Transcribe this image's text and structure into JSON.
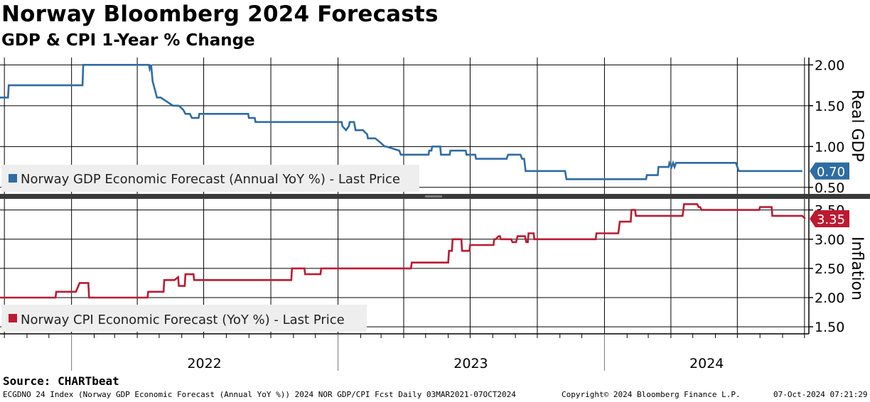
{
  "header": {
    "title": "Norway Bloomberg 2024 Forecasts",
    "subtitle": "GDP & CPI 1-Year % Change"
  },
  "source_label": "Source: CHARTbeat",
  "footer": {
    "description": "ECGDNO 24 Index (Norway GDP Economic Forecast (Annual YoY %)) 2024 NOR GDP/CPI Fcst  Daily 03MAR2021-07OCT2024",
    "copyright": "Copyright© 2024 Bloomberg Finance L.P.",
    "timestamp": "07-Oct-2024 07:21:29"
  },
  "chart_data": [
    {
      "type": "line",
      "panel": "top",
      "ylabel": "Real GDP",
      "ylim": [
        0.42,
        2.09
      ],
      "yticks": [
        "2.00",
        "1.50",
        "1.00",
        "0.50"
      ],
      "ytick_values": [
        2.0,
        1.5,
        1.0,
        0.5
      ],
      "legend": "Norway GDP Economic Forecast (Annual YoY %) - Last Price",
      "legend_placement": "bottom-left",
      "last_value_label": "0.70",
      "color": "#2e6ca4",
      "x_range": [
        "2021-09-25",
        "2024-10-07"
      ],
      "x_year_labels": [
        "2022",
        "2023",
        "2024"
      ],
      "grid": true,
      "series": [
        {
          "x": [
            "2021-09-25",
            "2021-10-06",
            "2021-10-07",
            "2022-01-16",
            "2022-01-17",
            "2022-03-12",
            "2022-04-17",
            "2022-04-18",
            "2022-04-20",
            "2022-04-22",
            "2022-04-28",
            "2022-05-03",
            "2022-05-20",
            "2022-05-28",
            "2022-06-03",
            "2022-06-06",
            "2022-06-12",
            "2022-06-15",
            "2022-06-24",
            "2022-06-25",
            "2022-08-31",
            "2022-09-01",
            "2022-09-09",
            "2022-09-10",
            "2023-01-06",
            "2023-01-07",
            "2023-01-12",
            "2023-01-16",
            "2023-01-17",
            "2023-01-23",
            "2023-01-25",
            "2023-02-04",
            "2023-02-10",
            "2023-02-11",
            "2023-02-21",
            "2023-02-28",
            "2023-03-06",
            "2023-03-08",
            "2023-03-26",
            "2023-03-28",
            "2023-04-05",
            "2023-04-07",
            "2023-05-05",
            "2023-05-06",
            "2023-05-09",
            "2023-05-10",
            "2023-05-14",
            "2023-05-21",
            "2023-05-22",
            "2023-06-03",
            "2023-06-04",
            "2023-06-25",
            "2023-06-26",
            "2023-07-08",
            "2023-07-09",
            "2023-08-20",
            "2023-08-22",
            "2023-09-08",
            "2023-09-10",
            "2023-09-13",
            "2023-09-15",
            "2023-11-08",
            "2023-11-10",
            "2024-02-27",
            "2024-02-28",
            "2024-03-14",
            "2024-03-15",
            "2024-03-29",
            "2024-03-30",
            "2024-04-02",
            "2024-04-04",
            "2024-04-06",
            "2024-04-08",
            "2024-06-29",
            "2024-07-03",
            "2024-09-28"
          ],
          "values": [
            1.6,
            1.6,
            1.75,
            1.75,
            2.0,
            2.0,
            2.0,
            1.95,
            2.0,
            1.8,
            1.6,
            1.6,
            1.5,
            1.5,
            1.45,
            1.4,
            1.4,
            1.35,
            1.35,
            1.4,
            1.4,
            1.35,
            1.35,
            1.3,
            1.3,
            1.25,
            1.2,
            1.25,
            1.3,
            1.3,
            1.2,
            1.2,
            1.15,
            1.1,
            1.1,
            1.05,
            1.0,
            1.0,
            0.95,
            0.9,
            0.9,
            0.9,
            0.9,
            0.95,
            0.95,
            1.0,
            1.0,
            1.0,
            0.9,
            0.9,
            0.95,
            0.95,
            0.9,
            0.9,
            0.85,
            0.85,
            0.9,
            0.9,
            0.85,
            0.85,
            0.7,
            0.7,
            0.6,
            0.6,
            0.65,
            0.65,
            0.75,
            0.75,
            0.8,
            0.75,
            0.8,
            0.75,
            0.8,
            0.8,
            0.7,
            0.7
          ]
        }
      ]
    },
    {
      "type": "line",
      "panel": "bottom",
      "ylabel": "Inflation",
      "ylim": [
        1.38,
        3.69
      ],
      "yticks": [
        "3.50",
        "3.00",
        "2.50",
        "2.00",
        "1.50"
      ],
      "ytick_values": [
        3.5,
        3.0,
        2.5,
        2.0,
        1.5
      ],
      "legend": "Norway CPI Economic Forecast (YoY %) - Last Price",
      "legend_placement": "bottom-left",
      "last_value_label": "3.35",
      "color": "#bc1a31",
      "x_range": [
        "2021-09-25",
        "2024-10-07"
      ],
      "x_year_labels": [
        "2022",
        "2023",
        "2024"
      ],
      "grid": true,
      "series": [
        {
          "x": [
            "2021-09-25",
            "2021-12-10",
            "2021-12-11",
            "2022-01-06",
            "2022-01-07",
            "2022-01-12",
            "2022-01-24",
            "2022-01-25",
            "2022-04-15",
            "2022-04-16",
            "2022-05-07",
            "2022-05-08",
            "2022-05-22",
            "2022-05-27",
            "2022-05-28",
            "2022-06-05",
            "2022-06-06",
            "2022-06-17",
            "2022-06-18",
            "2022-10-29",
            "2022-10-30",
            "2022-11-16",
            "2022-11-17",
            "2022-12-08",
            "2022-12-09",
            "2023-02-28",
            "2023-03-01",
            "2023-03-14",
            "2023-03-15",
            "2023-04-11",
            "2023-04-12",
            "2023-06-01",
            "2023-06-02",
            "2023-06-06",
            "2023-06-07",
            "2023-06-19",
            "2023-06-20",
            "2023-06-30",
            "2023-07-01",
            "2023-08-02",
            "2023-08-03",
            "2023-08-05",
            "2023-08-09",
            "2023-08-11",
            "2023-08-12",
            "2023-08-26",
            "2023-08-28",
            "2023-09-02",
            "2023-09-04",
            "2023-09-14",
            "2023-09-16",
            "2023-09-18",
            "2023-09-19",
            "2023-09-26",
            "2023-09-27",
            "2023-12-20",
            "2023-12-21",
            "2024-01-20",
            "2024-01-22",
            "2024-02-06",
            "2024-02-07",
            "2024-02-12",
            "2024-02-13",
            "2024-04-17",
            "2024-04-19",
            "2024-05-07",
            "2024-05-09",
            "2024-05-11",
            "2024-05-13",
            "2024-07-31",
            "2024-08-01",
            "2024-08-17",
            "2024-08-18",
            "2024-09-28",
            "2024-10-02"
          ],
          "values": [
            2.0,
            2.0,
            2.1,
            2.1,
            2.1,
            2.25,
            2.25,
            2.0,
            2.0,
            2.1,
            2.1,
            2.3,
            2.3,
            2.35,
            2.2,
            2.2,
            2.4,
            2.4,
            2.3,
            2.3,
            2.5,
            2.5,
            2.4,
            2.4,
            2.5,
            2.5,
            2.5,
            2.5,
            2.5,
            2.5,
            2.6,
            2.6,
            2.8,
            2.8,
            3.0,
            3.0,
            2.8,
            2.8,
            2.9,
            2.9,
            3.0,
            3.0,
            3.05,
            3.05,
            3.0,
            3.0,
            2.95,
            2.95,
            3.05,
            3.05,
            2.95,
            2.95,
            3.1,
            3.1,
            3.0,
            3.0,
            3.1,
            3.1,
            3.3,
            3.3,
            3.5,
            3.5,
            3.4,
            3.4,
            3.6,
            3.6,
            3.55,
            3.55,
            3.5,
            3.5,
            3.55,
            3.55,
            3.4,
            3.4,
            3.35
          ]
        }
      ]
    }
  ]
}
